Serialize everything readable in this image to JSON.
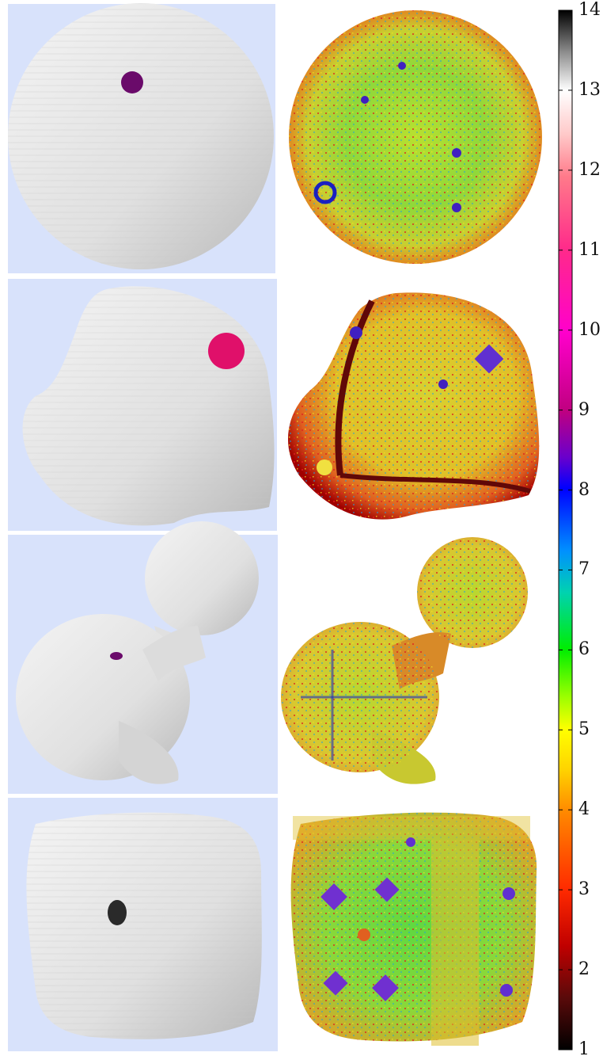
{
  "colorbar": {
    "ticks": [
      "14",
      "13",
      "12",
      "11",
      "10",
      "9",
      "8",
      "7",
      "6",
      "5",
      "4",
      "3",
      "2",
      "1"
    ],
    "stops": [
      "#000000",
      "#5a0a0a",
      "#c00000",
      "#ff2a00",
      "#ff8a00",
      "#ffd400",
      "#ffff00",
      "#9aff00",
      "#00ee00",
      "#00d2b0",
      "#0090ff",
      "#0000ff",
      "#6a00cc",
      "#c00080",
      "#ff00cc",
      "#ff2a8a",
      "#ff7a8a",
      "#ffc8c8",
      "#ffffff",
      "#8c8c8c",
      "#000000"
    ]
  },
  "colors": {
    "background_panel": "#d8e2fb",
    "mesh_gray": "#e4e4e4",
    "spot_purple": "#6a0a6a",
    "spot_magenta": "#e0106a",
    "spot_dark": "#2a2a2a"
  },
  "rows": [
    {
      "shape": "sphere",
      "spot_color": "#6a0a6a"
    },
    {
      "shape": "tetra-blob",
      "spot_color": "#e0106a"
    },
    {
      "shape": "dumbbell",
      "spot_color": "#6a0a6a"
    },
    {
      "shape": "rounded-cube",
      "spot_color": "#2a2a2a"
    }
  ]
}
